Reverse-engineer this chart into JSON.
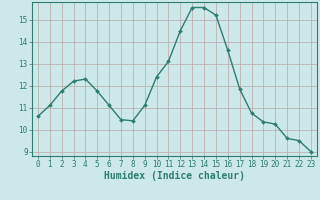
{
  "x": [
    0,
    1,
    2,
    3,
    4,
    5,
    6,
    7,
    8,
    9,
    10,
    11,
    12,
    13,
    14,
    15,
    16,
    17,
    18,
    19,
    20,
    21,
    22,
    23
  ],
  "y": [
    10.6,
    11.1,
    11.75,
    12.2,
    12.3,
    11.75,
    11.1,
    10.45,
    10.4,
    11.1,
    12.4,
    13.1,
    14.5,
    15.55,
    15.55,
    15.2,
    13.6,
    11.85,
    10.75,
    10.35,
    10.25,
    9.6,
    9.5,
    9.0
  ],
  "line_color": "#2e7d6e",
  "marker": "D",
  "marker_size": 2.0,
  "linewidth": 1.0,
  "bg_color": "#cce8e8",
  "grid_color": "#b8a8a8",
  "xlabel": "Humidex (Indice chaleur)",
  "xlabel_fontsize": 7,
  "tick_fontsize": 5.5,
  "xlim": [
    -0.5,
    23.5
  ],
  "ylim": [
    8.8,
    15.8
  ],
  "yticks": [
    9,
    10,
    11,
    12,
    13,
    14,
    15
  ],
  "xticks": [
    0,
    1,
    2,
    3,
    4,
    5,
    6,
    7,
    8,
    9,
    10,
    11,
    12,
    13,
    14,
    15,
    16,
    17,
    18,
    19,
    20,
    21,
    22,
    23
  ]
}
